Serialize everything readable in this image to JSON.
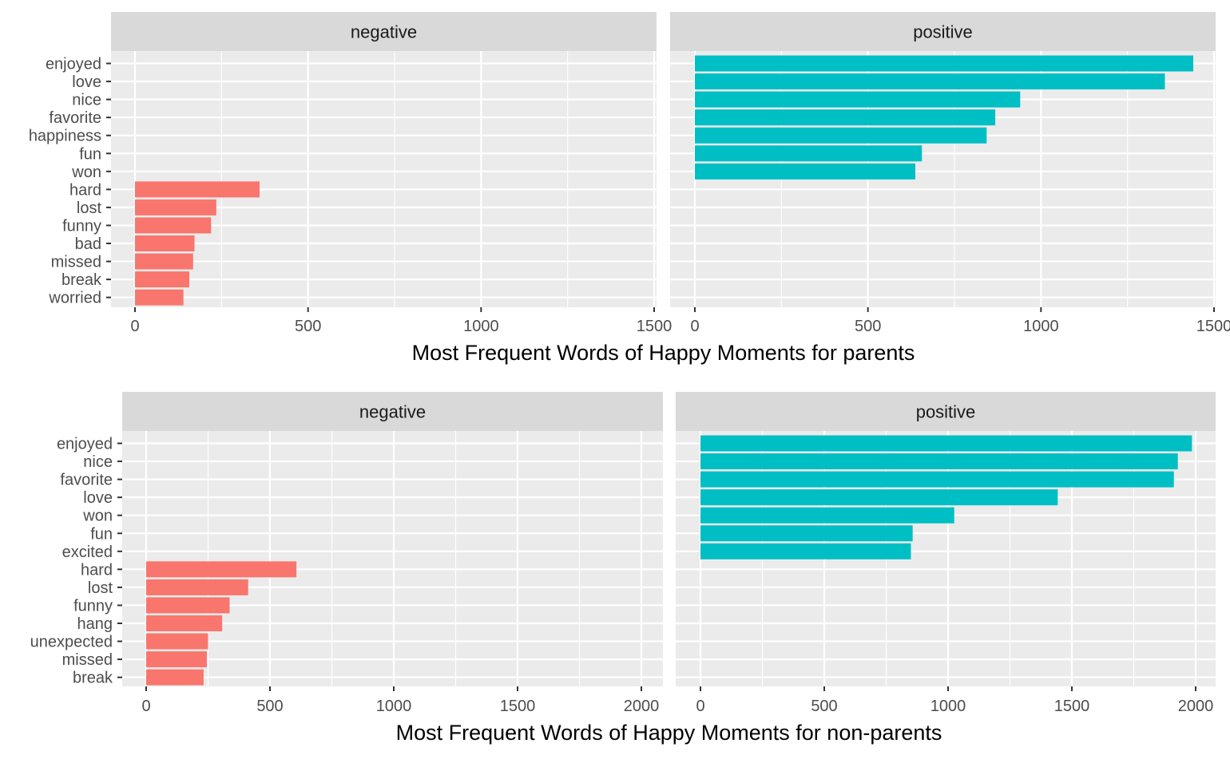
{
  "chart_data": [
    {
      "type": "bar",
      "orientation": "horizontal",
      "title": "",
      "xlabel": "Most Frequent Words of Happy Moments for parents",
      "ylabel": "",
      "xlim": [
        0,
        1500
      ],
      "x_ticks": [
        0,
        500,
        1000,
        1500
      ],
      "grid": true,
      "legend": "none",
      "categories": [
        "enjoyed",
        "love",
        "nice",
        "favorite",
        "happiness",
        "fun",
        "won",
        "hard",
        "lost",
        "funny",
        "bad",
        "missed",
        "break",
        "worried"
      ],
      "facets": [
        {
          "label": "negative",
          "color": "#F8766D",
          "values": [
            null,
            null,
            null,
            null,
            null,
            null,
            null,
            360,
            235,
            220,
            172,
            168,
            157,
            140
          ]
        },
        {
          "label": "positive",
          "color": "#00BFC4",
          "values": [
            1440,
            1358,
            940,
            868,
            843,
            656,
            637,
            null,
            null,
            null,
            null,
            null,
            null,
            null
          ]
        }
      ]
    },
    {
      "type": "bar",
      "orientation": "horizontal",
      "title": "",
      "xlabel": "Most Frequent Words of Happy Moments for non-parents",
      "ylabel": "",
      "xlim": [
        0,
        2000
      ],
      "x_ticks": [
        0,
        500,
        1000,
        1500,
        2000
      ],
      "grid": true,
      "legend": "none",
      "categories": [
        "enjoyed",
        "nice",
        "favorite",
        "love",
        "won",
        "fun",
        "excited",
        "hard",
        "lost",
        "funny",
        "hang",
        "unexpected",
        "missed",
        "break"
      ],
      "facets": [
        {
          "label": "negative",
          "color": "#F8766D",
          "values": [
            null,
            null,
            null,
            null,
            null,
            null,
            null,
            607,
            412,
            337,
            307,
            250,
            245,
            232
          ]
        },
        {
          "label": "positive",
          "color": "#00BFC4",
          "values": [
            null,
            null,
            null,
            null,
            null,
            null,
            null,
            null,
            null,
            null,
            null,
            null,
            null,
            null
          ]
        }
      ]
    }
  ]
}
